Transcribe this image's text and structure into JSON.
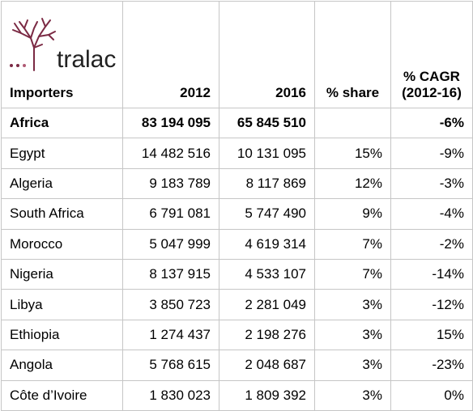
{
  "logo": {
    "text": "tralac",
    "icon": "tree-icon",
    "color": "#7b2a44"
  },
  "headers": [
    "Importers",
    "2012",
    "2016",
    "% share",
    "% CAGR (2012-16)"
  ],
  "header_cagr_line1": "% CAGR",
  "header_cagr_line2": "(2012-16)",
  "rows": [
    {
      "name": "Africa",
      "y2012": "83 194 095",
      "y2016": "65 845 510",
      "share": "",
      "cagr": "-6%"
    },
    {
      "name": "Egypt",
      "y2012": "14 482 516",
      "y2016": "10 131 095",
      "share": "15%",
      "cagr": "-9%"
    },
    {
      "name": "Algeria",
      "y2012": "9 183 789",
      "y2016": "8 117 869",
      "share": "12%",
      "cagr": "-3%"
    },
    {
      "name": "South Africa",
      "y2012": "6 791 081",
      "y2016": "5 747 490",
      "share": "9%",
      "cagr": "-4%"
    },
    {
      "name": "Morocco",
      "y2012": "5 047 999",
      "y2016": "4 619 314",
      "share": "7%",
      "cagr": "-2%"
    },
    {
      "name": "Nigeria",
      "y2012": "8 137 915",
      "y2016": "4 533 107",
      "share": "7%",
      "cagr": "-14%"
    },
    {
      "name": "Libya",
      "y2012": "3 850 723",
      "y2016": "2 281 049",
      "share": "3%",
      "cagr": "-12%"
    },
    {
      "name": "Ethiopia",
      "y2012": "1 274 437",
      "y2016": "2 198 276",
      "share": "3%",
      "cagr": "15%"
    },
    {
      "name": "Angola",
      "y2012": "5 768 615",
      "y2016": "2 048 687",
      "share": "3%",
      "cagr": "-23%"
    },
    {
      "name": "Côte d’Ivoire",
      "y2012": "1 830 023",
      "y2016": "1 809 392",
      "share": "3%",
      "cagr": "0%"
    }
  ]
}
